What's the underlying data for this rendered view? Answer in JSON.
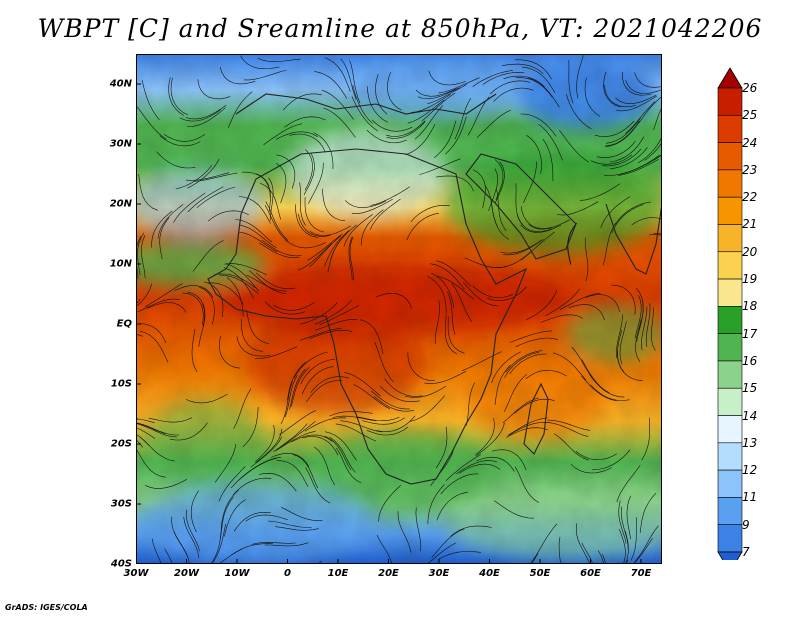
{
  "title": "WBPT [C] and Sreamline at 850hPa, VT: 2021042206",
  "footer": "GrADS: IGES/COLA",
  "map": {
    "variable": "Wet-bulb potential temperature",
    "units": "C",
    "level": "850hPa",
    "valid_time": "2021042206",
    "lat_labels": [
      "40N",
      "30N",
      "20N",
      "10N",
      "EQ",
      "10S",
      "20S",
      "30S",
      "40S"
    ],
    "lon_labels": [
      "30W",
      "20W",
      "10W",
      "0",
      "10E",
      "20E",
      "30E",
      "40E",
      "50E",
      "60E",
      "70E"
    ]
  },
  "colorbar": {
    "labels": [
      "26",
      "25",
      "24",
      "23",
      "22",
      "21",
      "20",
      "19",
      "18",
      "17",
      "16",
      "15",
      "14",
      "13",
      "12",
      "11",
      "9",
      "7"
    ],
    "colors": [
      "#a50000",
      "#c81e00",
      "#dc3c00",
      "#e65a00",
      "#f07800",
      "#f59600",
      "#f7b428",
      "#fad250",
      "#fae68c",
      "#28a028",
      "#50b450",
      "#8cd28c",
      "#c8f0c8",
      "#e6f5ff",
      "#b4dcff",
      "#8cc3fa",
      "#5aa0f0",
      "#3c82e6",
      "#1e5fd2"
    ]
  }
}
